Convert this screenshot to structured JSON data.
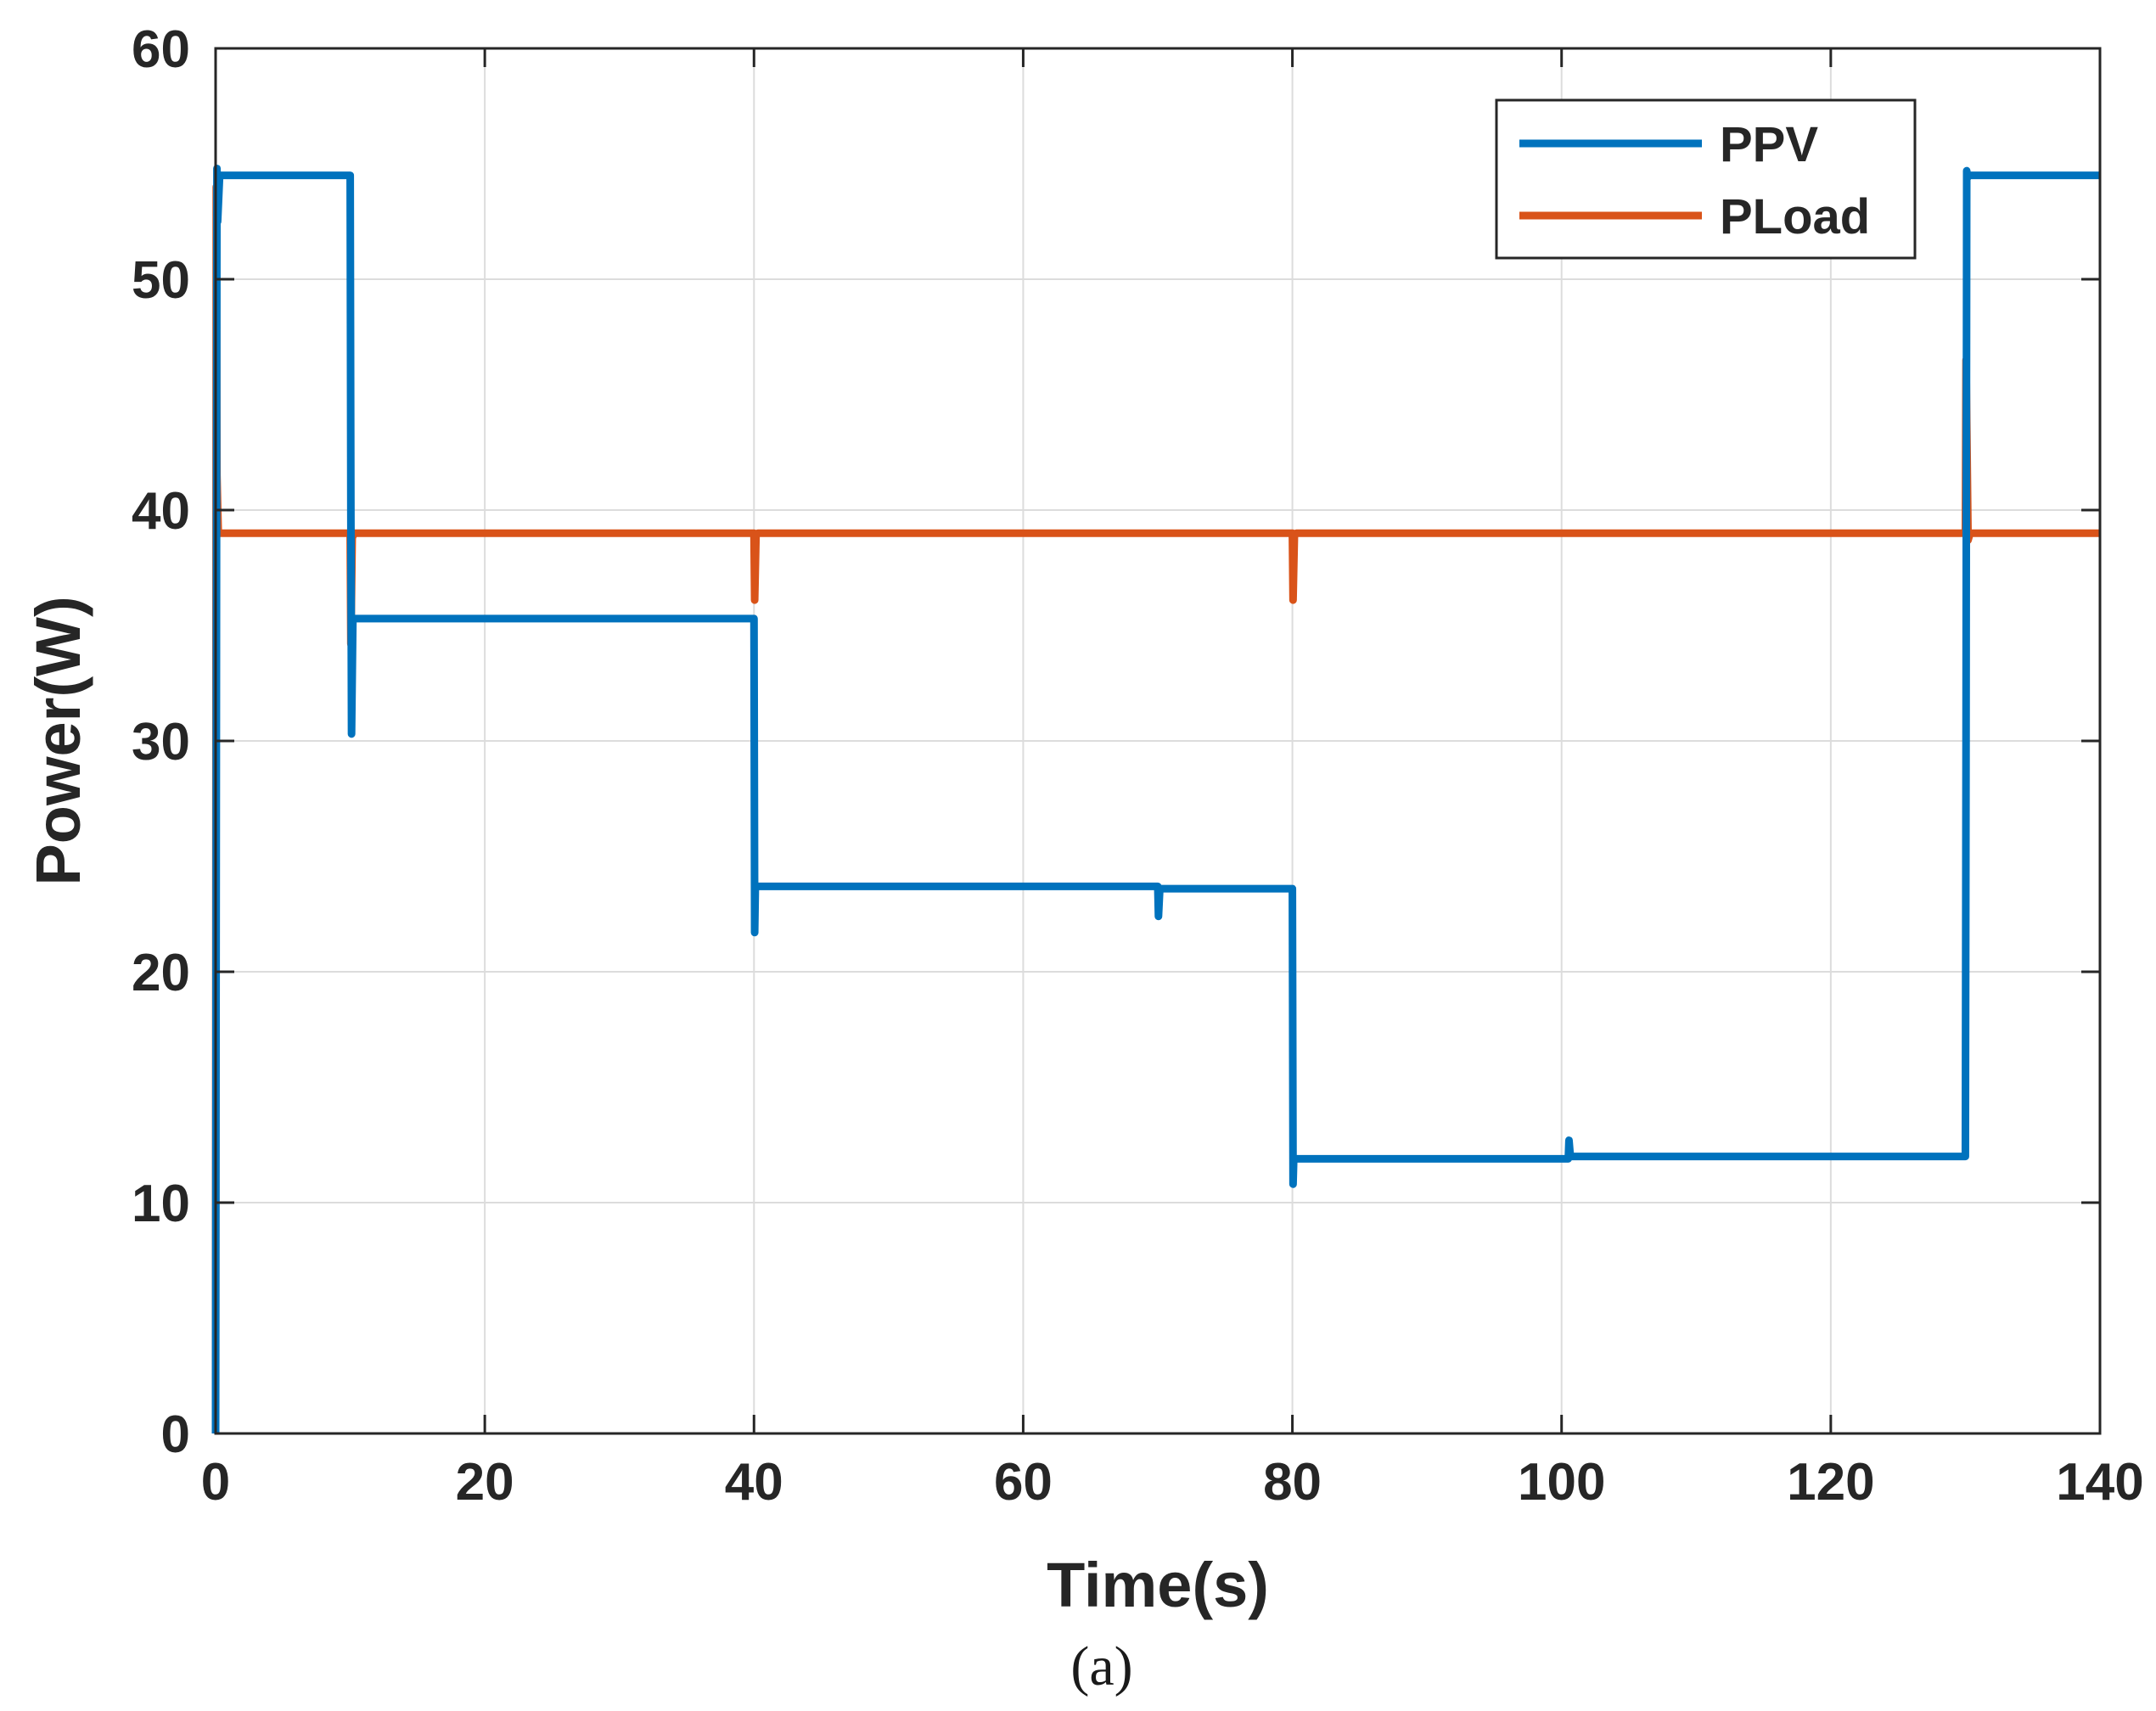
{
  "chart_data": {
    "type": "line",
    "title": "",
    "xlabel": "Time(s)",
    "ylabel": "Power(W)",
    "caption": "(a)",
    "xlim": [
      0,
      140
    ],
    "ylim": [
      0,
      60
    ],
    "xticks": [
      0,
      20,
      40,
      60,
      80,
      100,
      120,
      140
    ],
    "yticks": [
      0,
      10,
      20,
      30,
      40,
      50,
      60
    ],
    "grid": true,
    "legend_position": "top-right",
    "series": [
      {
        "name": "PPV",
        "color": "#0072BD",
        "x": [
          0,
          0.1,
          0.15,
          0.3,
          10,
          10.05,
          10.1,
          10.2,
          10.3,
          40,
          40.05,
          40.1,
          40.2,
          40.3,
          70,
          70.05,
          70.15,
          70.25,
          80,
          80.05,
          80.1,
          80.2,
          80.3,
          100.5,
          100.55,
          100.65,
          100.75,
          130,
          130.05,
          130.1,
          130.15,
          130.3,
          140
        ],
        "y": [
          0,
          54.8,
          52.5,
          54.5,
          54.5,
          40,
          30.3,
          35.3,
          35.3,
          35.3,
          21.7,
          23.7,
          23.7,
          23.7,
          23.7,
          22.4,
          23.6,
          23.6,
          23.6,
          10.8,
          11.9,
          11.9,
          11.9,
          11.9,
          12.7,
          12,
          12,
          12,
          30,
          54.7,
          54.4,
          54.5,
          54.5
        ]
      },
      {
        "name": "PLoad",
        "color": "#D95319",
        "x": [
          0,
          0.05,
          0.1,
          0.2,
          0.3,
          10,
          10.05,
          10.15,
          10.3,
          40,
          40.05,
          40.15,
          40.3,
          80,
          80.05,
          80.15,
          80.3,
          130,
          130.05,
          130.2,
          130.35,
          140
        ],
        "y": [
          0,
          54,
          41.5,
          39,
          39,
          39,
          34.2,
          38.8,
          39,
          39,
          36.1,
          38.9,
          39,
          39,
          36.1,
          38.9,
          39,
          39,
          46.5,
          38.7,
          39,
          39
        ]
      }
    ]
  }
}
